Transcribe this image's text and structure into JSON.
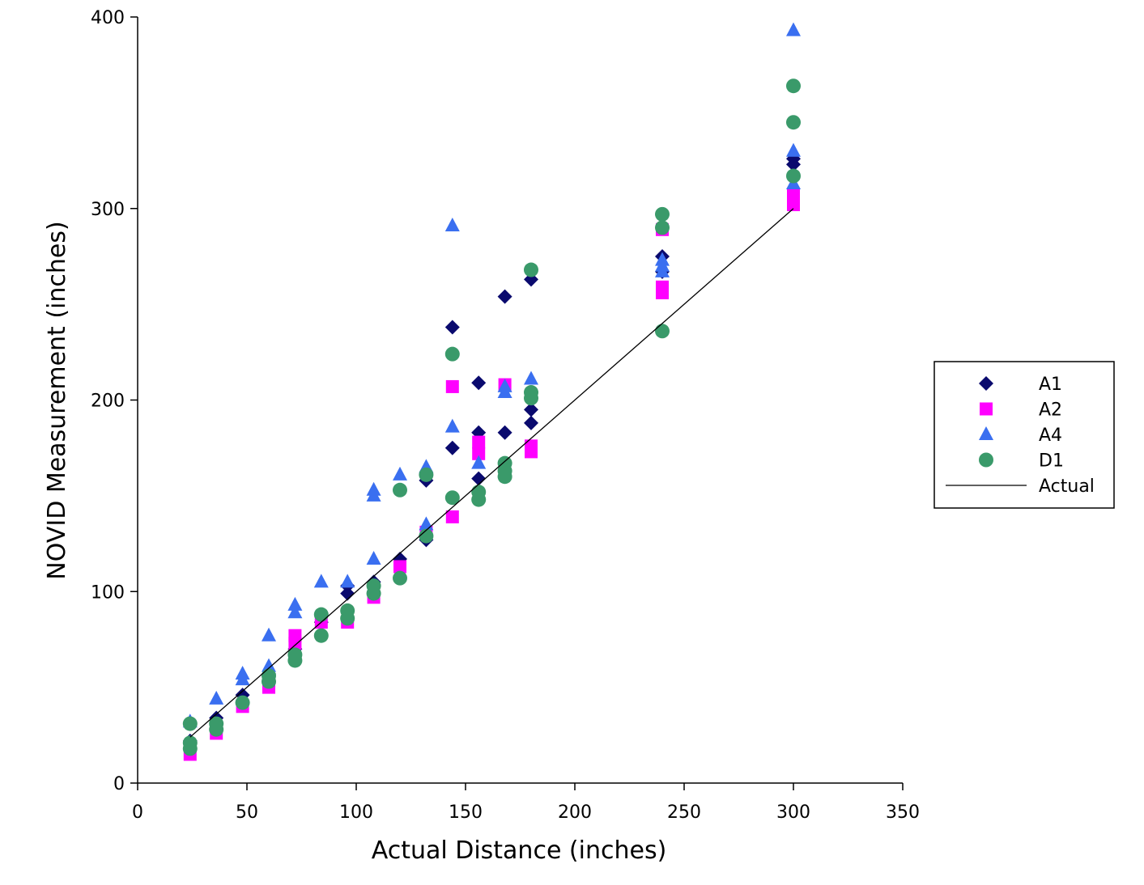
{
  "chart_data": {
    "type": "scatter",
    "title": "",
    "xlabel": "Actual Distance (inches)",
    "ylabel": "NOVID Measurement (inches)",
    "xlim": [
      0,
      350
    ],
    "ylim": [
      0,
      400
    ],
    "xticks": [
      0,
      50,
      100,
      150,
      200,
      250,
      300,
      350
    ],
    "yticks": [
      0,
      100,
      200,
      300,
      400
    ],
    "grid": false,
    "legend_position": "right",
    "series": [
      {
        "name": "A1",
        "marker": "diamond",
        "color": "#0a0a6e",
        "points": [
          [
            24,
            22
          ],
          [
            36,
            34
          ],
          [
            48,
            46
          ],
          [
            60,
            57
          ],
          [
            72,
            70
          ],
          [
            84,
            84
          ],
          [
            96,
            99
          ],
          [
            96,
            103
          ],
          [
            108,
            105
          ],
          [
            120,
            117
          ],
          [
            132,
            127
          ],
          [
            132,
            158
          ],
          [
            144,
            175
          ],
          [
            144,
            238
          ],
          [
            156,
            159
          ],
          [
            156,
            183
          ],
          [
            156,
            209
          ],
          [
            168,
            183
          ],
          [
            168,
            254
          ],
          [
            180,
            188
          ],
          [
            180,
            195
          ],
          [
            180,
            263
          ],
          [
            240,
            267
          ],
          [
            240,
            275
          ],
          [
            300,
            323
          ],
          [
            300,
            326
          ]
        ]
      },
      {
        "name": "A2",
        "marker": "square",
        "color": "#ff00ff",
        "points": [
          [
            24,
            15
          ],
          [
            36,
            26
          ],
          [
            48,
            40
          ],
          [
            60,
            50
          ],
          [
            72,
            73
          ],
          [
            72,
            77
          ],
          [
            84,
            84
          ],
          [
            96,
            84
          ],
          [
            108,
            97
          ],
          [
            120,
            113
          ],
          [
            132,
            131
          ],
          [
            144,
            139
          ],
          [
            144,
            207
          ],
          [
            156,
            172
          ],
          [
            156,
            178
          ],
          [
            168,
            208
          ],
          [
            180,
            173
          ],
          [
            180,
            176
          ],
          [
            240,
            256
          ],
          [
            240,
            259
          ],
          [
            240,
            289
          ],
          [
            300,
            302
          ],
          [
            300,
            304
          ],
          [
            300,
            307
          ]
        ]
      },
      {
        "name": "A4",
        "marker": "triangle",
        "color": "#3a6ff0",
        "points": [
          [
            24,
            32
          ],
          [
            36,
            44
          ],
          [
            48,
            54
          ],
          [
            48,
            57
          ],
          [
            60,
            61
          ],
          [
            60,
            77
          ],
          [
            72,
            89
          ],
          [
            72,
            93
          ],
          [
            84,
            105
          ],
          [
            96,
            105
          ],
          [
            108,
            117
          ],
          [
            108,
            150
          ],
          [
            108,
            153
          ],
          [
            120,
            161
          ],
          [
            132,
            135
          ],
          [
            132,
            165
          ],
          [
            144,
            186
          ],
          [
            144,
            291
          ],
          [
            156,
            167
          ],
          [
            168,
            204
          ],
          [
            168,
            207
          ],
          [
            180,
            211
          ],
          [
            240,
            267
          ],
          [
            240,
            270
          ],
          [
            240,
            273
          ],
          [
            300,
            313
          ],
          [
            300,
            330
          ],
          [
            300,
            393
          ]
        ]
      },
      {
        "name": "D1",
        "marker": "circle",
        "color": "#3a9a6a",
        "points": [
          [
            24,
            18
          ],
          [
            24,
            21
          ],
          [
            24,
            31
          ],
          [
            36,
            28
          ],
          [
            36,
            31
          ],
          [
            48,
            42
          ],
          [
            60,
            53
          ],
          [
            60,
            56
          ],
          [
            72,
            64
          ],
          [
            72,
            67
          ],
          [
            84,
            77
          ],
          [
            84,
            88
          ],
          [
            96,
            86
          ],
          [
            96,
            90
          ],
          [
            108,
            99
          ],
          [
            108,
            103
          ],
          [
            120,
            107
          ],
          [
            120,
            153
          ],
          [
            132,
            129
          ],
          [
            132,
            161
          ],
          [
            144,
            149
          ],
          [
            144,
            224
          ],
          [
            156,
            148
          ],
          [
            156,
            152
          ],
          [
            168,
            160
          ],
          [
            168,
            163
          ],
          [
            168,
            167
          ],
          [
            180,
            201
          ],
          [
            180,
            204
          ],
          [
            180,
            268
          ],
          [
            240,
            236
          ],
          [
            240,
            290
          ],
          [
            240,
            297
          ],
          [
            300,
            317
          ],
          [
            300,
            345
          ],
          [
            300,
            364
          ]
        ]
      },
      {
        "name": "Actual",
        "marker": "line",
        "color": "#000000",
        "points": [
          [
            24,
            24
          ],
          [
            300,
            300
          ]
        ]
      }
    ]
  }
}
